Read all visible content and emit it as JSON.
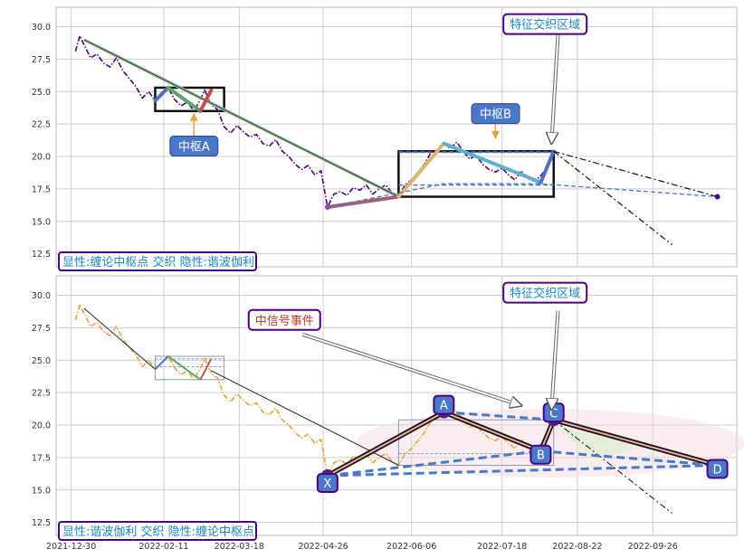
{
  "chart_data": [
    {
      "type": "line",
      "panel": "top",
      "ylim": [
        11.5,
        31.5
      ],
      "y_ticks": [
        "12.5",
        "15.0",
        "17.5",
        "20.0",
        "22.5",
        "25.0",
        "27.5",
        "30.0"
      ],
      "grid": true,
      "series": [
        {
          "kind": "price",
          "color": "#4b0082",
          "style": "dashdot",
          "x": [
            "2022-01-01",
            "2022-01-03",
            "2022-01-05",
            "2022-01-08",
            "2022-01-11",
            "2022-01-14",
            "2022-01-17",
            "2022-01-20",
            "2022-01-23",
            "2022-01-26",
            "2022-01-29",
            "2022-02-01",
            "2022-02-04",
            "2022-02-07",
            "2022-02-10",
            "2022-02-13",
            "2022-02-16",
            "2022-02-19",
            "2022-02-22",
            "2022-02-25",
            "2022-02-28",
            "2022-03-02",
            "2022-03-05",
            "2022-03-08",
            "2022-03-11",
            "2022-03-14",
            "2022-03-17",
            "2022-03-20",
            "2022-03-23",
            "2022-03-26",
            "2022-03-29",
            "2022-04-01",
            "2022-04-04",
            "2022-04-07",
            "2022-04-10",
            "2022-04-13",
            "2022-04-16",
            "2022-04-19",
            "2022-04-22",
            "2022-04-25",
            "2022-04-28",
            "2022-05-01",
            "2022-05-04",
            "2022-05-07",
            "2022-05-10",
            "2022-05-13",
            "2022-05-16",
            "2022-05-19",
            "2022-05-22",
            "2022-05-25",
            "2022-05-28",
            "2022-05-31",
            "2022-06-03",
            "2022-06-06",
            "2022-06-09",
            "2022-06-12",
            "2022-06-15",
            "2022-06-18",
            "2022-06-21",
            "2022-06-24",
            "2022-06-27",
            "2022-06-30",
            "2022-07-03",
            "2022-07-06",
            "2022-07-09",
            "2022-07-12",
            "2022-07-15",
            "2022-07-18",
            "2022-07-21",
            "2022-07-24",
            "2022-07-27",
            "2022-07-30",
            "2022-08-02",
            "2022-08-05",
            "2022-08-08",
            "2022-08-11"
          ],
          "y": [
            28.1,
            29.3,
            28.6,
            27.6,
            27.9,
            27.2,
            26.9,
            27.6,
            26.6,
            26.0,
            25.4,
            24.5,
            25.0,
            24.3,
            24.8,
            25.3,
            24.4,
            23.9,
            24.2,
            23.5,
            24.4,
            25.1,
            24.0,
            23.6,
            22.3,
            21.8,
            22.4,
            21.9,
            21.5,
            21.7,
            21.0,
            20.8,
            21.3,
            20.4,
            20.0,
            19.4,
            19.0,
            19.3,
            18.6,
            18.9,
            16.1,
            17.1,
            17.3,
            17.0,
            17.6,
            17.4,
            17.8,
            17.1,
            17.5,
            17.8,
            17.2,
            16.9,
            17.8,
            18.2,
            18.8,
            19.4,
            20.3,
            20.5,
            21.0,
            20.6,
            21.1,
            20.4,
            19.8,
            20.1,
            19.4,
            19.0,
            18.8,
            19.1,
            18.6,
            18.2,
            18.9,
            18.3,
            18.1,
            18.5,
            19.2,
            20.4
          ]
        },
        {
          "kind": "trend",
          "color": "#9ec5a0",
          "x": [
            "2022-01-05",
            "2022-05-31"
          ],
          "y": [
            29.0,
            16.9
          ]
        },
        {
          "kind": "trend",
          "color": "#333333",
          "x": [
            "2022-01-05",
            "2022-05-31"
          ],
          "y": [
            29.0,
            16.9
          ]
        },
        {
          "kind": "bi",
          "color": "#4f6fbf",
          "x": [
            "2022-02-07",
            "2022-02-13"
          ],
          "y": [
            24.3,
            25.3
          ]
        },
        {
          "kind": "bi",
          "color": "#5aa469",
          "x": [
            "2022-02-13",
            "2022-02-28"
          ],
          "y": [
            25.3,
            23.5
          ]
        },
        {
          "kind": "bi",
          "color": "#c0504d",
          "x": [
            "2022-02-28",
            "2022-03-05"
          ],
          "y": [
            23.5,
            25.1
          ]
        },
        {
          "kind": "bi",
          "color": "#a35f7a",
          "x": [
            "2022-04-28",
            "2022-05-31"
          ],
          "y": [
            16.1,
            16.9
          ]
        },
        {
          "kind": "bi",
          "color": "#d9b86c",
          "x": [
            "2022-05-31",
            "2022-06-21"
          ],
          "y": [
            16.9,
            21.0
          ]
        },
        {
          "kind": "bi",
          "color": "#5fb0cf",
          "x": [
            "2022-06-21",
            "2022-08-05"
          ],
          "y": [
            21.0,
            18.0
          ]
        },
        {
          "kind": "bi",
          "color": "#4f6fbf",
          "x": [
            "2022-08-05",
            "2022-08-11"
          ],
          "y": [
            18.0,
            20.4
          ]
        },
        {
          "kind": "forecast",
          "color": "#111111",
          "style": "dashdot",
          "x": [
            "2022-08-11",
            "2022-10-26"
          ],
          "y": [
            20.4,
            16.9
          ]
        },
        {
          "kind": "forecast",
          "color": "#111111",
          "style": "dashdot",
          "x": [
            "2022-08-11",
            "2022-10-05"
          ],
          "y": [
            20.4,
            13.2
          ]
        },
        {
          "kind": "harmonic",
          "color": "#4a78c8",
          "style": "dashed",
          "x": [
            "2022-04-28",
            "2022-06-21",
            "2022-08-05",
            "2022-10-26"
          ],
          "y": [
            16.1,
            17.9,
            17.9,
            16.9
          ]
        }
      ],
      "zones": [
        {
          "name": "zhongshu-A",
          "x": [
            "2022-02-07",
            "2022-03-11"
          ],
          "y": [
            23.5,
            25.3
          ],
          "color": "#111111"
        },
        {
          "name": "zhongshu-B",
          "x": [
            "2022-05-31",
            "2022-08-11"
          ],
          "y": [
            16.9,
            20.4
          ],
          "color": "#111111"
        },
        {
          "name": "inner-B",
          "x": [
            "2022-05-31",
            "2022-08-11"
          ],
          "y": [
            17.8,
            20.4
          ],
          "color": "#4a78c8"
        }
      ],
      "annotations": [
        {
          "text": "中枢A",
          "style": "blue-box",
          "x": "2022-02-25",
          "y": 20.8,
          "arrow_to": [
            "2022-02-25",
            23.3
          ]
        },
        {
          "text": "中枢B",
          "style": "blue-box",
          "x": "2022-07-15",
          "y": 23.3,
          "arrow_to": [
            "2022-07-15",
            21.4
          ]
        },
        {
          "text": "特征交织区域",
          "style": "white-box",
          "x": "2022-08-07",
          "y": 30.2,
          "arrow_to": [
            "2022-08-10",
            21.0
          ]
        }
      ],
      "end_marker": {
        "x": "2022-10-26",
        "y": 16.9,
        "color": "#4b0082"
      },
      "corner_label": "显性:缠论中枢点 交织 隐性:谐波伽利"
    },
    {
      "type": "line",
      "panel": "bottom",
      "ylim": [
        11.5,
        31.5
      ],
      "y_ticks": [
        "12.5",
        "15.0",
        "17.5",
        "20.0",
        "22.5",
        "25.0",
        "27.5",
        "30.0"
      ],
      "x_ticks": [
        "2021-12-30",
        "2022-02-11",
        "2022-03-18",
        "2022-04-26",
        "2022-06-06",
        "2022-07-18",
        "2022-08-22",
        "2022-09-26"
      ],
      "grid": true,
      "series": [
        {
          "kind": "price",
          "color": "#e8a33a",
          "style": "dashdot",
          "same_as": "top"
        },
        {
          "kind": "harmonic-leg",
          "color": "#111111",
          "x": [
            "2022-04-28",
            "2022-06-21",
            "2022-08-05",
            "2022-08-11",
            "2022-10-26"
          ],
          "y": [
            16.1,
            21.0,
            18.0,
            20.4,
            16.9
          ]
        },
        {
          "kind": "harmonic-dash",
          "color": "#4a78c8",
          "x": [
            "2022-04-28",
            "2022-08-05"
          ],
          "y": [
            16.1,
            18.0
          ]
        },
        {
          "kind": "harmonic-dash",
          "color": "#4a78c8",
          "x": [
            "2022-04-28",
            "2022-10-26"
          ],
          "y": [
            16.1,
            16.9
          ]
        },
        {
          "kind": "harmonic-dash",
          "color": "#4a78c8",
          "x": [
            "2022-06-21",
            "2022-08-11"
          ],
          "y": [
            21.0,
            20.4
          ]
        },
        {
          "kind": "harmonic-dash",
          "color": "#4a78c8",
          "x": [
            "2022-08-05",
            "2022-10-26"
          ],
          "y": [
            18.0,
            16.9
          ]
        }
      ],
      "points": [
        {
          "label": "X",
          "x": "2022-04-28",
          "y": 16.1
        },
        {
          "label": "A",
          "x": "2022-06-21",
          "y": 21.0
        },
        {
          "label": "B",
          "x": "2022-08-05",
          "y": 18.0
        },
        {
          "label": "C",
          "x": "2022-08-11",
          "y": 20.4
        },
        {
          "label": "D",
          "x": "2022-10-26",
          "y": 16.9
        }
      ],
      "annotations": [
        {
          "text": "中信号事件",
          "style": "white-box-red",
          "x": "2022-04-08",
          "y": 28.1,
          "arrow_to": [
            "2022-07-27",
            21.5
          ]
        },
        {
          "text": "特征交织区域",
          "style": "white-box",
          "x": "2022-08-07",
          "y": 30.2,
          "arrow_to": [
            "2022-08-10",
            21.2
          ]
        }
      ],
      "corner_label": "显性:谐波伽利 交织 隐性:缠论中枢点"
    }
  ]
}
